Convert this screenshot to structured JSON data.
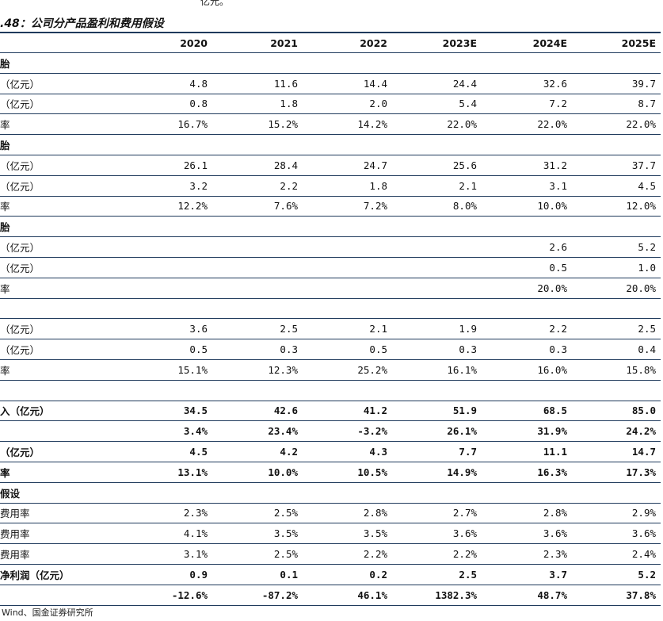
{
  "top_fragment": "亿元。",
  "title": ".48：公司分产品盈利和费用假设",
  "header": [
    "2020",
    "2021",
    "2022",
    "2023E",
    "2024E",
    "2025E"
  ],
  "rows": [
    {
      "label": "胎",
      "section": true,
      "values": [
        "",
        "",
        "",
        "",
        "",
        ""
      ]
    },
    {
      "label": "（亿元）",
      "values": [
        "4.8",
        "11.6",
        "14.4",
        "24.4",
        "32.6",
        "39.7"
      ]
    },
    {
      "label": "（亿元）",
      "values": [
        "0.8",
        "1.8",
        "2.0",
        "5.4",
        "7.2",
        "8.7"
      ]
    },
    {
      "label": "率",
      "values": [
        "16.7%",
        "15.2%",
        "14.2%",
        "22.0%",
        "22.0%",
        "22.0%"
      ]
    },
    {
      "label": "胎",
      "section": true,
      "values": [
        "",
        "",
        "",
        "",
        "",
        ""
      ]
    },
    {
      "label": "（亿元）",
      "values": [
        "26.1",
        "28.4",
        "24.7",
        "25.6",
        "31.2",
        "37.7"
      ]
    },
    {
      "label": "（亿元）",
      "values": [
        "3.2",
        "2.2",
        "1.8",
        "2.1",
        "3.1",
        "4.5"
      ]
    },
    {
      "label": "率",
      "values": [
        "12.2%",
        "7.6%",
        "7.2%",
        "8.0%",
        "10.0%",
        "12.0%"
      ]
    },
    {
      "label": "胎",
      "section": true,
      "values": [
        "",
        "",
        "",
        "",
        "",
        ""
      ]
    },
    {
      "label": "（亿元）",
      "values": [
        "",
        "",
        "",
        "",
        "2.6",
        "5.2"
      ]
    },
    {
      "label": "（亿元）",
      "values": [
        "",
        "",
        "",
        "",
        "0.5",
        "1.0"
      ]
    },
    {
      "label": "率",
      "values": [
        "",
        "",
        "",
        "",
        "20.0%",
        "20.0%"
      ]
    },
    {
      "label": "",
      "section": true,
      "values": [
        "",
        "",
        "",
        "",
        "",
        ""
      ]
    },
    {
      "label": "（亿元）",
      "values": [
        "3.6",
        "2.5",
        "2.1",
        "1.9",
        "2.2",
        "2.5"
      ]
    },
    {
      "label": "（亿元）",
      "values": [
        "0.5",
        "0.3",
        "0.5",
        "0.3",
        "0.3",
        "0.4"
      ]
    },
    {
      "label": "率",
      "values": [
        "15.1%",
        "12.3%",
        "25.2%",
        "16.1%",
        "16.0%",
        "15.8%"
      ]
    },
    {
      "label": "",
      "values": [
        "",
        "",
        "",
        "",
        "",
        ""
      ]
    },
    {
      "label": "入（亿元）",
      "bold": true,
      "values": [
        "34.5",
        "42.6",
        "41.2",
        "51.9",
        "68.5",
        "85.0"
      ]
    },
    {
      "label": "",
      "bold": true,
      "values": [
        "3.4%",
        "23.4%",
        "-3.2%",
        "26.1%",
        "31.9%",
        "24.2%"
      ]
    },
    {
      "label": "（亿元）",
      "bold": true,
      "values": [
        "4.5",
        "4.2",
        "4.3",
        "7.7",
        "11.1",
        "14.7"
      ]
    },
    {
      "label": "率",
      "bold": true,
      "values": [
        "13.1%",
        "10.0%",
        "10.5%",
        "14.9%",
        "16.3%",
        "17.3%"
      ]
    },
    {
      "label": "假设",
      "section": true,
      "values": [
        "",
        "",
        "",
        "",
        "",
        ""
      ]
    },
    {
      "label": "费用率",
      "values": [
        "2.3%",
        "2.5%",
        "2.8%",
        "2.7%",
        "2.8%",
        "2.9%"
      ]
    },
    {
      "label": "费用率",
      "values": [
        "4.1%",
        "3.5%",
        "3.5%",
        "3.6%",
        "3.6%",
        "3.6%"
      ]
    },
    {
      "label": "费用率",
      "values": [
        "3.1%",
        "2.5%",
        "2.2%",
        "2.2%",
        "2.3%",
        "2.4%"
      ]
    },
    {
      "label": "净利润（亿元）",
      "bold": true,
      "values": [
        "0.9",
        "0.1",
        "0.2",
        "2.5",
        "3.7",
        "5.2"
      ]
    },
    {
      "label": "",
      "bold": true,
      "values": [
        "-12.6%",
        "-87.2%",
        "46.1%",
        "1382.3%",
        "48.7%",
        "37.8%"
      ]
    }
  ],
  "source": "Wind、国金证券研究所"
}
